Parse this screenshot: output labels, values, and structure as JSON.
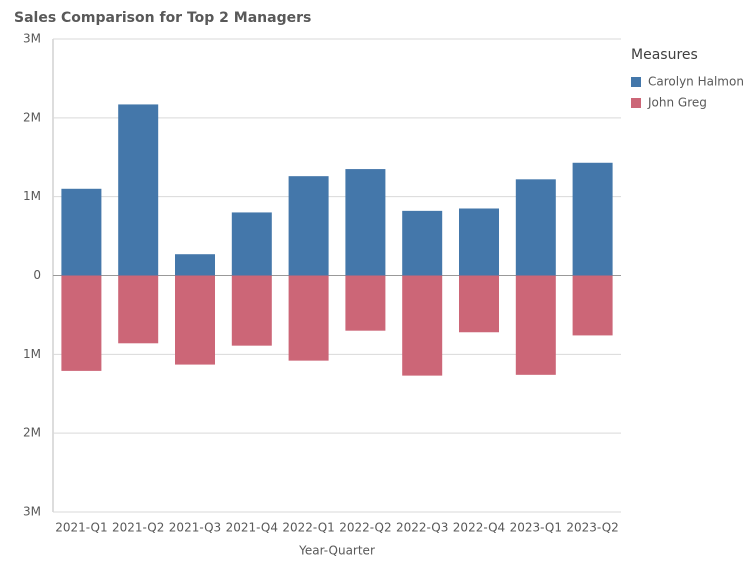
{
  "chart_data": {
    "type": "bar",
    "title": "Sales Comparison for Top 2 Managers",
    "x_label": "Year-Quarter",
    "legend_title": "Measures",
    "categories": [
      "2021-Q1",
      "2021-Q2",
      "2021-Q3",
      "2021-Q4",
      "2022-Q1",
      "2022-Q2",
      "2022-Q3",
      "2022-Q4",
      "2023-Q1",
      "2023-Q2"
    ],
    "series": [
      {
        "name": "Carolyn Halmon",
        "color": "#4477aa",
        "values": [
          1100000,
          2170000,
          270000,
          800000,
          1260000,
          1350000,
          820000,
          850000,
          1220000,
          1430000
        ]
      },
      {
        "name": "John Greg",
        "color": "#cc6677",
        "values": [
          -1210000,
          -860000,
          -1130000,
          -890000,
          -1080000,
          -700000,
          -1270000,
          -720000,
          -1260000,
          -760000
        ]
      }
    ],
    "ylim": [
      -3000000,
      3000000
    ],
    "yticks": [
      {
        "value": -3000000,
        "label": "3M"
      },
      {
        "value": -2000000,
        "label": "2M"
      },
      {
        "value": -1000000,
        "label": "1M"
      },
      0,
      {
        "value": 1000000,
        "label": "1M"
      },
      {
        "value": 2000000,
        "label": "2M"
      },
      {
        "value": 3000000,
        "label": "3M"
      }
    ],
    "grid": true,
    "legend": "right"
  }
}
